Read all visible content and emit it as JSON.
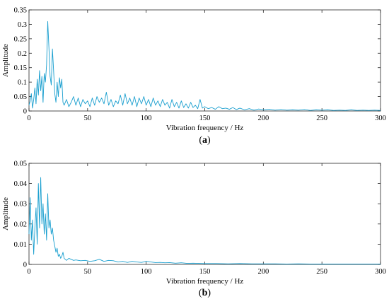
{
  "chart_data": [
    {
      "type": "line",
      "title": "",
      "xlabel": "Vibration frequency / Hz",
      "ylabel": "Amplitude",
      "caption_letter": "a",
      "xlim": [
        0,
        300
      ],
      "ylim": [
        0,
        0.35
      ],
      "xticks": [
        0,
        50,
        100,
        150,
        200,
        250,
        300
      ],
      "yticks": [
        0,
        0.05,
        0.1,
        0.15,
        0.2,
        0.25,
        0.3,
        0.35
      ],
      "xtick_labels": [
        "0",
        "50",
        "100",
        "150",
        "200",
        "250",
        "300"
      ],
      "ytick_labels": [
        "0",
        "0.05",
        "0.1",
        "0.15",
        "0.2",
        "0.25",
        "0.3",
        "0.35"
      ],
      "grid": false,
      "color": "#1a9fcf",
      "series": [
        {
          "x": [
            0,
            1,
            2,
            3,
            4,
            5,
            6,
            7,
            8,
            9,
            10,
            11,
            12,
            13,
            14,
            15,
            16,
            17,
            18,
            19,
            20,
            21,
            22,
            23,
            24,
            25,
            26,
            27,
            28,
            29,
            30,
            32,
            34,
            36,
            38,
            40,
            42,
            44,
            46,
            48,
            50,
            52,
            54,
            56,
            58,
            60,
            62,
            64,
            66,
            68,
            70,
            72,
            74,
            76,
            78,
            80,
            82,
            84,
            86,
            88,
            90,
            92,
            94,
            96,
            98,
            100,
            102,
            104,
            106,
            108,
            110,
            112,
            114,
            116,
            118,
            120,
            122,
            124,
            126,
            128,
            130,
            132,
            134,
            136,
            138,
            140,
            142,
            144,
            146,
            148,
            150,
            153,
            156,
            159,
            162,
            165,
            168,
            171,
            174,
            177,
            180,
            184,
            188,
            192,
            196,
            200,
            205,
            210,
            215,
            220,
            225,
            230,
            235,
            240,
            245,
            250,
            255,
            260,
            265,
            270,
            275,
            280,
            285,
            290,
            295,
            300
          ],
          "y": [
            0.02,
            0.035,
            0.06,
            0.01,
            0.04,
            0.08,
            0.025,
            0.11,
            0.055,
            0.14,
            0.07,
            0.12,
            0.03,
            0.13,
            0.1,
            0.16,
            0.31,
            0.22,
            0.12,
            0.09,
            0.215,
            0.14,
            0.06,
            0.03,
            0.1,
            0.05,
            0.115,
            0.08,
            0.11,
            0.03,
            0.02,
            0.04,
            0.015,
            0.03,
            0.05,
            0.02,
            0.045,
            0.015,
            0.04,
            0.025,
            0.035,
            0.015,
            0.045,
            0.02,
            0.05,
            0.03,
            0.045,
            0.025,
            0.065,
            0.02,
            0.04,
            0.015,
            0.035,
            0.025,
            0.055,
            0.02,
            0.06,
            0.025,
            0.045,
            0.02,
            0.05,
            0.015,
            0.045,
            0.025,
            0.05,
            0.02,
            0.04,
            0.015,
            0.045,
            0.02,
            0.035,
            0.015,
            0.04,
            0.02,
            0.03,
            0.01,
            0.04,
            0.015,
            0.03,
            0.01,
            0.035,
            0.012,
            0.025,
            0.01,
            0.03,
            0.012,
            0.02,
            0.008,
            0.04,
            0.01,
            0.015,
            0.008,
            0.012,
            0.006,
            0.015,
            0.008,
            0.01,
            0.006,
            0.012,
            0.005,
            0.01,
            0.004,
            0.008,
            0.003,
            0.007,
            0.004,
            0.006,
            0.003,
            0.005,
            0.003,
            0.004,
            0.003,
            0.005,
            0.002,
            0.004,
            0.003,
            0.004,
            0.002,
            0.003,
            0.002,
            0.004,
            0.002,
            0.003,
            0.002,
            0.003,
            0.002
          ]
        }
      ]
    },
    {
      "type": "line",
      "title": "",
      "xlabel": "Vibration frequency / Hz",
      "ylabel": "Amplitude",
      "caption_letter": "b",
      "xlim": [
        0,
        300
      ],
      "ylim": [
        0,
        0.05
      ],
      "xticks": [
        0,
        50,
        100,
        150,
        200,
        250,
        300
      ],
      "yticks": [
        0,
        0.01,
        0.02,
        0.03,
        0.04,
        0.05
      ],
      "xtick_labels": [
        "0",
        "50",
        "100",
        "150",
        "200",
        "250",
        "300"
      ],
      "ytick_labels": [
        "0",
        "0.01",
        "0.02",
        "0.03",
        "0.04",
        "0.05"
      ],
      "grid": false,
      "color": "#1a9fcf",
      "series": [
        {
          "x": [
            0,
            1,
            2,
            3,
            4,
            5,
            6,
            7,
            8,
            9,
            10,
            11,
            12,
            13,
            14,
            15,
            16,
            17,
            18,
            19,
            20,
            21,
            22,
            23,
            24,
            25,
            26,
            27,
            28,
            29,
            30,
            32,
            34,
            36,
            38,
            40,
            44,
            48,
            52,
            56,
            60,
            64,
            68,
            72,
            76,
            80,
            84,
            88,
            92,
            96,
            100,
            104,
            108,
            112,
            116,
            120,
            125,
            130,
            135,
            140,
            145,
            150,
            160,
            170,
            180,
            190,
            200,
            210,
            220,
            230,
            240,
            250,
            260,
            270,
            280,
            290,
            300
          ],
          "y": [
            0.015,
            0.033,
            0.012,
            0.022,
            0.005,
            0.018,
            0.028,
            0.01,
            0.04,
            0.018,
            0.043,
            0.02,
            0.03,
            0.015,
            0.025,
            0.012,
            0.035,
            0.018,
            0.022,
            0.015,
            0.018,
            0.012,
            0.009,
            0.006,
            0.008,
            0.004,
            0.005,
            0.003,
            0.004,
            0.006,
            0.003,
            0.002,
            0.003,
            0.0025,
            0.002,
            0.0022,
            0.0018,
            0.002,
            0.0015,
            0.0018,
            0.0025,
            0.0015,
            0.002,
            0.0018,
            0.0012,
            0.0015,
            0.001,
            0.0015,
            0.0012,
            0.001,
            0.0015,
            0.0012,
            0.0009,
            0.001,
            0.0008,
            0.0009,
            0.0006,
            0.0008,
            0.0005,
            0.0006,
            0.0005,
            0.0004,
            0.0004,
            0.0003,
            0.0004,
            0.0003,
            0.0003,
            0.0003,
            0.0002,
            0.0003,
            0.0002,
            0.0002,
            0.0002,
            0.0002,
            0.0002,
            0.0002,
            0.0002
          ]
        }
      ]
    }
  ]
}
